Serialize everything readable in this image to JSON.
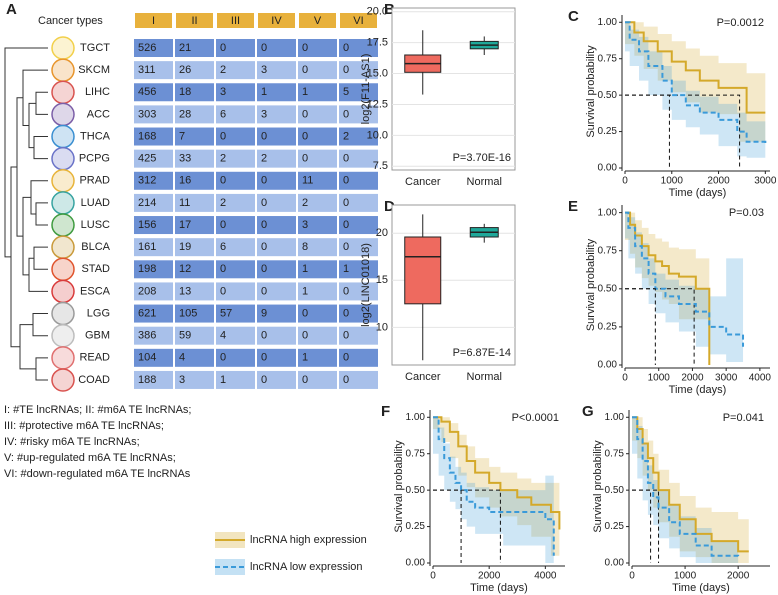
{
  "panel_a": {
    "label": "A",
    "header": "Cancer types",
    "columns": [
      "I",
      "II",
      "III",
      "IV",
      "V",
      "VI"
    ],
    "rows": [
      [
        "TGCT",
        526,
        21,
        0,
        0,
        0,
        0
      ],
      [
        "SKCM",
        311,
        26,
        2,
        3,
        0,
        0
      ],
      [
        "LIHC",
        456,
        18,
        3,
        1,
        1,
        5
      ],
      [
        "ACC",
        303,
        28,
        6,
        3,
        0,
        0
      ],
      [
        "THCA",
        168,
        7,
        0,
        0,
        0,
        2
      ],
      [
        "PCPG",
        425,
        33,
        2,
        2,
        0,
        0
      ],
      [
        "PRAD",
        312,
        16,
        0,
        0,
        11,
        0
      ],
      [
        "LUAD",
        214,
        11,
        2,
        0,
        2,
        0
      ],
      [
        "LUSC",
        156,
        17,
        0,
        0,
        3,
        0
      ],
      [
        "BLCA",
        161,
        19,
        6,
        0,
        8,
        0
      ],
      [
        "STAD",
        198,
        12,
        0,
        0,
        1,
        1
      ],
      [
        "ESCA",
        208,
        13,
        0,
        0,
        1,
        0
      ],
      [
        "LGG",
        621,
        105,
        57,
        9,
        0,
        0
      ],
      [
        "GBM",
        386,
        59,
        4,
        0,
        0,
        0
      ],
      [
        "READ",
        104,
        4,
        0,
        0,
        1,
        0
      ],
      [
        "COAD",
        188,
        3,
        1,
        0,
        0,
        0
      ]
    ],
    "notes": [
      "I: #TE lncRNAs;  II: #m6A TE lncRNAs;",
      "III: #protective m6A TE lncRNAs;",
      "IV: #risky m6A TE lncRNAs;",
      "V: #up-regulated m6A TE lncRNAs;",
      "VI: #down-regulated m6A TE lncRNAs"
    ]
  },
  "chart_data": [
    {
      "type": "box",
      "label": "B",
      "y_label": "log2(F11-AS1)",
      "annotation": "P=3.70E-16",
      "categories": [
        "Cancer",
        "Normal"
      ],
      "colors": [
        "#ee6a5f",
        "#1fa89a"
      ],
      "boxes": [
        {
          "low": 13.3,
          "q1": 15.1,
          "median": 15.8,
          "q3": 16.5,
          "high": 18.5
        },
        {
          "low": 16.5,
          "q1": 17.0,
          "median": 17.3,
          "q3": 17.6,
          "high": 18.0
        }
      ],
      "ylim": [
        7.2,
        20.3
      ],
      "yticks": [
        7.5,
        {
          "value": 10,
          "label": "10.0"
        },
        12.5,
        {
          "value": 15,
          "label": "15.0"
        },
        17.5,
        {
          "value": 20,
          "label": "20.0"
        }
      ]
    },
    {
      "type": "km",
      "label": "C",
      "x_label": "Time (days)",
      "y_label": "Survival probability",
      "annotation": "P=0.0012",
      "xlim": [
        0,
        3100
      ],
      "xticks": [
        0,
        1000,
        2000,
        3000
      ],
      "ylim": [
        0,
        1.05
      ],
      "yticks": [
        {
          "value": 0,
          "label": "0.00"
        },
        {
          "value": 0.25,
          "label": "0.25"
        },
        {
          "value": 0.5,
          "label": "0.50"
        },
        {
          "value": 0.75,
          "label": "0.75"
        },
        {
          "value": 1,
          "label": "1.00"
        }
      ],
      "series": [
        {
          "name": "lncRNA high expression",
          "color": "#d4a92a",
          "median": 2450,
          "x": [
            0,
            200,
            400,
            700,
            1000,
            1300,
            1600,
            2000,
            2450,
            2600,
            3000
          ],
          "values": [
            1,
            0.93,
            0.87,
            0.8,
            0.73,
            0.67,
            0.6,
            0.55,
            0.55,
            0.38,
            0.38
          ],
          "ci_low": [
            1,
            0.85,
            0.77,
            0.68,
            0.6,
            0.52,
            0.45,
            0.38,
            0.37,
            0.18,
            0.18
          ],
          "ci_high": [
            1,
            1,
            0.97,
            0.92,
            0.87,
            0.82,
            0.77,
            0.72,
            0.72,
            0.65,
            0.65
          ]
        },
        {
          "name": "lncRNA low expression",
          "color": "#3a9ad9",
          "median": 950,
          "x": [
            0,
            100,
            300,
            500,
            800,
            1000,
            1300,
            1600,
            2000,
            2400,
            2600,
            3000
          ],
          "values": [
            1,
            0.88,
            0.8,
            0.7,
            0.6,
            0.5,
            0.43,
            0.38,
            0.33,
            0.25,
            0.18,
            0.17
          ],
          "ci_low": [
            1,
            0.8,
            0.7,
            0.6,
            0.5,
            0.4,
            0.33,
            0.28,
            0.23,
            0.15,
            0.08,
            0.07
          ],
          "ci_high": [
            1,
            0.95,
            0.9,
            0.8,
            0.7,
            0.6,
            0.53,
            0.49,
            0.44,
            0.38,
            0.32,
            0.31
          ]
        }
      ]
    },
    {
      "type": "box",
      "label": "D",
      "y_label": "log2(LINC01018)",
      "annotation": "P=6.87E-14",
      "categories": [
        "Cancer",
        "Normal"
      ],
      "colors": [
        "#ee6a5f",
        "#1fa89a"
      ],
      "boxes": [
        {
          "low": 6.5,
          "q1": 12.5,
          "median": 17.5,
          "q3": 19.6,
          "high": 22
        },
        {
          "low": 19,
          "q1": 19.6,
          "median": 20.1,
          "q3": 20.6,
          "high": 21
        }
      ],
      "ylim": [
        6,
        23
      ],
      "yticks": [
        10,
        15,
        20
      ]
    },
    {
      "type": "km",
      "label": "E",
      "x_label": "Time (days)",
      "y_label": "Survival probability",
      "annotation": "P=0.03",
      "xlim": [
        0,
        4300
      ],
      "xticks": [
        0,
        1000,
        2000,
        3000,
        4000
      ],
      "ylim": [
        0,
        1.05
      ],
      "yticks": [
        {
          "value": 0,
          "label": "0.00"
        },
        {
          "value": 0.25,
          "label": "0.25"
        },
        {
          "value": 0.5,
          "label": "0.50"
        },
        {
          "value": 0.75,
          "label": "0.75"
        },
        {
          "value": 1,
          "label": "1.00"
        }
      ],
      "series": [
        {
          "name": "lncRNA high expression",
          "color": "#d4a92a",
          "median": 2050,
          "x": [
            0,
            150,
            300,
            500,
            700,
            900,
            1100,
            1300,
            1600,
            2100,
            2500,
            2500
          ],
          "values": [
            1,
            0.92,
            0.85,
            0.78,
            0.72,
            0.68,
            0.65,
            0.6,
            0.58,
            0.5,
            0.5,
            0
          ],
          "ci_low": [
            1,
            0.82,
            0.73,
            0.64,
            0.57,
            0.52,
            0.48,
            0.43,
            0.4,
            0.3,
            0.3,
            0
          ],
          "ci_high": [
            1,
            1,
            0.95,
            0.9,
            0.86,
            0.83,
            0.81,
            0.77,
            0.76,
            0.7,
            0.7,
            0
          ]
        },
        {
          "name": "lncRNA low expression",
          "color": "#3a9ad9",
          "median": 900,
          "x": [
            0,
            100,
            300,
            500,
            700,
            900,
            1200,
            1600,
            2100,
            2500,
            3000,
            3500
          ],
          "values": [
            1,
            0.9,
            0.78,
            0.7,
            0.6,
            0.5,
            0.45,
            0.4,
            0.35,
            0.25,
            0.2,
            0.12
          ],
          "ci_low": [
            1,
            0.83,
            0.7,
            0.6,
            0.5,
            0.4,
            0.34,
            0.28,
            0.22,
            0.12,
            0.07,
            0.02
          ],
          "ci_high": [
            1,
            0.97,
            0.87,
            0.8,
            0.7,
            0.6,
            0.56,
            0.52,
            0.5,
            0.45,
            0.7,
            0.7
          ]
        }
      ]
    },
    {
      "type": "km",
      "label": "F",
      "x_label": "Time (days)",
      "y_label": "Survival probability",
      "annotation": "P<0.0001",
      "xlim": [
        0,
        4700
      ],
      "xticks": [
        0,
        2000,
        4000
      ],
      "ylim": [
        0,
        1.05
      ],
      "yticks": [
        {
          "value": 0,
          "label": "0.00"
        },
        {
          "value": 0.25,
          "label": "0.25"
        },
        {
          "value": 0.5,
          "label": "0.50"
        },
        {
          "value": 0.75,
          "label": "0.75"
        },
        {
          "value": 1,
          "label": "1.00"
        }
      ],
      "series": [
        {
          "name": "lncRNA high expression",
          "color": "#d4a92a",
          "median": 2400,
          "x": [
            0,
            300,
            600,
            900,
            1200,
            1500,
            2000,
            2400,
            3000,
            3500,
            4200,
            4500
          ],
          "values": [
            1,
            0.97,
            0.9,
            0.8,
            0.7,
            0.62,
            0.55,
            0.5,
            0.45,
            0.4,
            0.35,
            0.23
          ],
          "ci_low": [
            1,
            0.92,
            0.83,
            0.72,
            0.6,
            0.52,
            0.45,
            0.38,
            0.32,
            0.26,
            0.18,
            0.05
          ],
          "ci_high": [
            1,
            1,
            0.96,
            0.88,
            0.8,
            0.72,
            0.66,
            0.62,
            0.58,
            0.55,
            0.55,
            0.5
          ]
        },
        {
          "name": "lncRNA low expression",
          "color": "#3a9ad9",
          "median": 1000,
          "x": [
            0,
            200,
            400,
            600,
            800,
            1000,
            1200,
            1500,
            2000,
            2500,
            4000,
            4300
          ],
          "values": [
            1,
            0.85,
            0.72,
            0.62,
            0.55,
            0.5,
            0.42,
            0.38,
            0.35,
            0.35,
            0.3,
            0.05
          ],
          "ci_low": [
            1,
            0.75,
            0.6,
            0.5,
            0.42,
            0.37,
            0.3,
            0.25,
            0.2,
            0.2,
            0.12,
            0
          ],
          "ci_high": [
            1,
            0.93,
            0.82,
            0.73,
            0.66,
            0.62,
            0.55,
            0.52,
            0.5,
            0.5,
            0.6,
            0.45
          ]
        }
      ]
    },
    {
      "type": "km",
      "label": "G",
      "x_label": "Time (days)",
      "y_label": "Survival probability",
      "annotation": "P=0.041",
      "xlim": [
        0,
        2600
      ],
      "xticks": [
        0,
        1000,
        2000
      ],
      "ylim": [
        0,
        1.05
      ],
      "yticks": [
        {
          "value": 0,
          "label": "0.00"
        },
        {
          "value": 0.25,
          "label": "0.25"
        },
        {
          "value": 0.5,
          "label": "0.50"
        },
        {
          "value": 0.75,
          "label": "0.75"
        },
        {
          "value": 1,
          "label": "1.00"
        }
      ],
      "series": [
        {
          "name": "lncRNA high expression",
          "color": "#d4a92a",
          "median": 500,
          "x": [
            0,
            100,
            200,
            300,
            400,
            500,
            700,
            900,
            1200,
            1500,
            2000,
            2200
          ],
          "values": [
            1,
            0.92,
            0.82,
            0.72,
            0.62,
            0.5,
            0.4,
            0.3,
            0.2,
            0.15,
            0.08,
            0.08
          ],
          "ci_low": [
            1,
            0.84,
            0.72,
            0.6,
            0.5,
            0.38,
            0.28,
            0.18,
            0.08,
            0.04,
            0,
            0
          ],
          "ci_high": [
            1,
            1,
            0.92,
            0.84,
            0.75,
            0.64,
            0.55,
            0.46,
            0.38,
            0.35,
            0.3,
            0.3
          ]
        },
        {
          "name": "lncRNA low expression",
          "color": "#3a9ad9",
          "median": 350,
          "x": [
            0,
            100,
            200,
            300,
            400,
            500,
            700,
            900,
            1200,
            1500,
            2000
          ],
          "values": [
            1,
            0.85,
            0.7,
            0.55,
            0.45,
            0.38,
            0.28,
            0.2,
            0.12,
            0.05,
            0.03
          ],
          "ci_low": [
            1,
            0.75,
            0.58,
            0.43,
            0.33,
            0.26,
            0.17,
            0.1,
            0.04,
            0,
            0
          ],
          "ci_high": [
            1,
            0.94,
            0.82,
            0.67,
            0.57,
            0.5,
            0.4,
            0.32,
            0.24,
            0.15,
            0.12
          ]
        }
      ]
    }
  ]
}
